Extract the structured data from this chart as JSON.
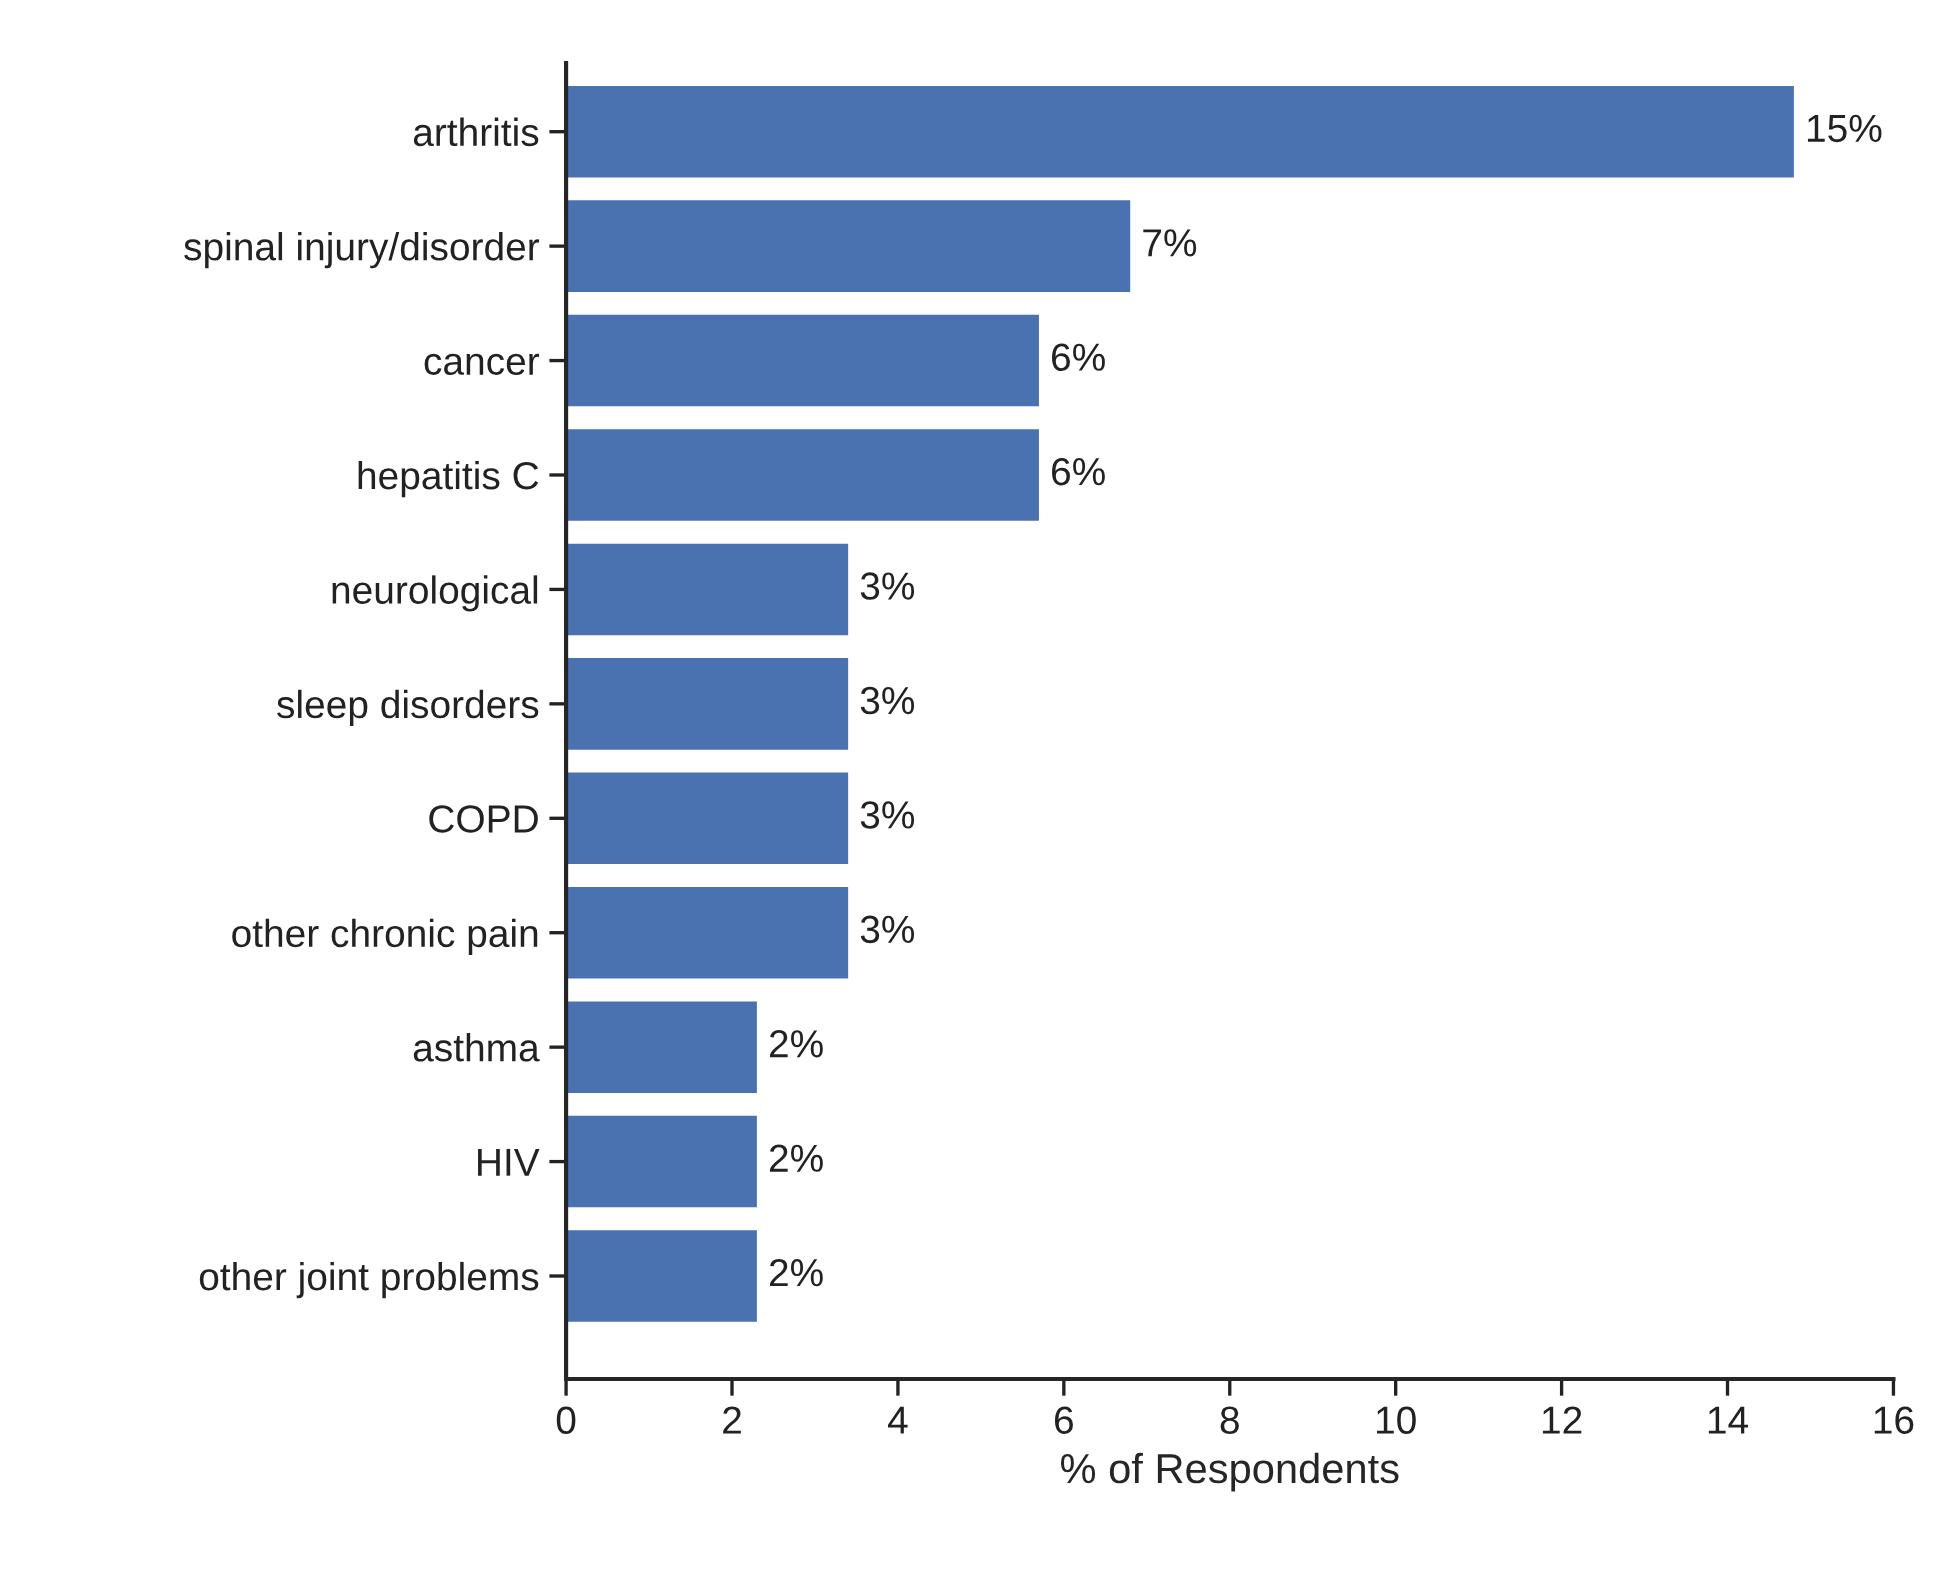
{
  "chart_data": {
    "type": "bar",
    "orientation": "horizontal",
    "xlabel": "% of Respondents",
    "categories": [
      "arthritis",
      "spinal injury/disorder",
      "cancer",
      "hepatitis C",
      "neurological",
      "sleep disorders",
      "COPD",
      "other chronic pain",
      "asthma",
      "HIV",
      "other joint problems"
    ],
    "values": [
      14.8,
      6.8,
      5.7,
      5.7,
      3.4,
      3.4,
      3.4,
      3.4,
      2.3,
      2.3,
      2.3
    ],
    "value_labels": [
      "15%",
      "7%",
      "6%",
      "6%",
      "3%",
      "3%",
      "3%",
      "3%",
      "2%",
      "2%",
      "2%"
    ],
    "color": "#4a71b0",
    "xlim": [
      0,
      16
    ],
    "xticks": [
      0,
      2,
      4,
      6,
      8,
      10,
      12,
      14,
      16
    ],
    "grid": false
  }
}
